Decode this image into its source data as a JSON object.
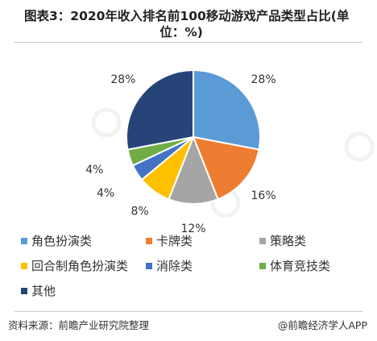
{
  "header": {
    "title_line1": "图表3：2020年收入排名前100移动游戏产品类型占比(单",
    "title_line2": "位：%)"
  },
  "chart_data": {
    "type": "pie",
    "categories": [
      "角色扮演类",
      "卡牌类",
      "策略类",
      "回合制角色扮演类",
      "消除类",
      "体育竞技类",
      "其他"
    ],
    "values": [
      28,
      16,
      12,
      8,
      4,
      4,
      28
    ],
    "labels": [
      "28%",
      "16%",
      "12%",
      "8%",
      "4%",
      "4%",
      "28%"
    ],
    "colors": [
      "#5B9BD5",
      "#ED7D31",
      "#A5A5A5",
      "#FFC000",
      "#4472C4",
      "#70AD47",
      "#264478"
    ],
    "legend_position": "bottom"
  },
  "footer": {
    "source": "资料来源：前瞻产业研究院整理",
    "brand": "@前瞻经济学人APP"
  }
}
